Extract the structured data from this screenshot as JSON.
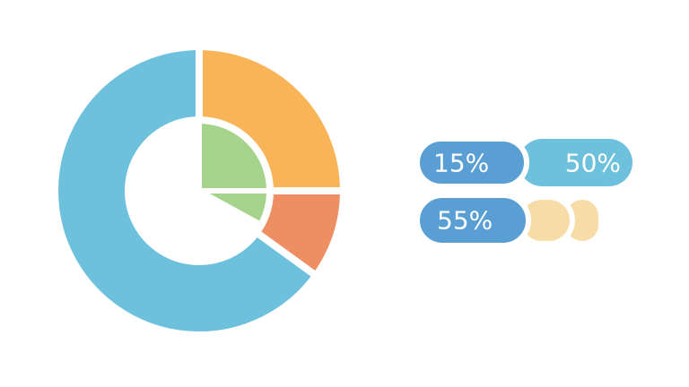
{
  "chart_data": [
    {
      "type": "donut",
      "values": [
        25,
        10,
        65
      ],
      "colors": [
        "#f9b458",
        "#ee8f63",
        "#6ec1dc"
      ]
    },
    {
      "type": "pie",
      "values": [
        25,
        8
      ],
      "colors": [
        "#a6d38b",
        "#a6d38b"
      ]
    }
  ],
  "badges": [
    {
      "label": "15%",
      "color": "#5a9fd4"
    },
    {
      "label": "50%",
      "color": "#6ec1dc"
    },
    {
      "label": "55%",
      "color": "#5a9fd4"
    }
  ]
}
